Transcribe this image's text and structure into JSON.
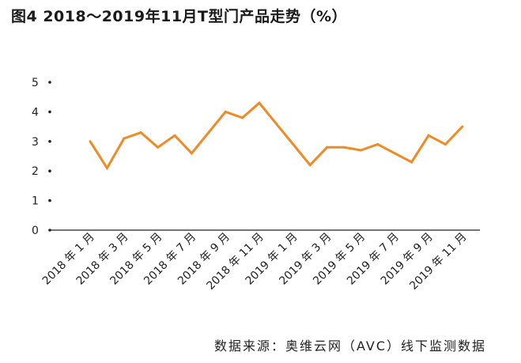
{
  "header": {
    "title": "图4 2018～2019年11月T型门产品走势（%）"
  },
  "footer": {
    "source": "数据来源：奥维云网（AVC）线下监测数据"
  },
  "chart_data": {
    "type": "line",
    "title": "图4 2018～2019年11月T型门产品走势（%）",
    "xlabel": "",
    "ylabel": "",
    "ylim": [
      0,
      5
    ],
    "yticks": [
      0,
      1,
      2,
      3,
      4,
      5
    ],
    "grid": false,
    "legend": "none",
    "x": [
      "2018年1月",
      "2018年2月",
      "2018年3月",
      "2018年4月",
      "2018年5月",
      "2018年6月",
      "2018年7月",
      "2018年8月",
      "2018年9月",
      "2018年10月",
      "2018年11月",
      "2018年12月",
      "2019年1月",
      "2019年2月",
      "2019年3月",
      "2019年4月",
      "2019年5月",
      "2019年6月",
      "2019年7月",
      "2019年8月",
      "2019年9月",
      "2019年10月",
      "2019年11月"
    ],
    "xtick_labels": [
      "2018 年 1 月",
      "2018 年 3 月",
      "2018 年 5 月",
      "2018 年 7 月",
      "2018 年 9 月",
      "2018 年 11 月",
      "2019 年 1 月",
      "2019 年 3 月",
      "2019 年 5 月",
      "2019 年 7 月",
      "2019 年 9 月",
      "2019 年 11 月"
    ],
    "series": [
      {
        "color": "#f08a24",
        "values": [
          3.0,
          2.1,
          3.1,
          3.3,
          2.8,
          3.2,
          2.6,
          3.3,
          4.0,
          3.8,
          4.3,
          3.6,
          2.9,
          2.2,
          2.8,
          2.8,
          2.7,
          2.9,
          2.6,
          2.3,
          3.2,
          2.9,
          3.5
        ]
      }
    ]
  }
}
